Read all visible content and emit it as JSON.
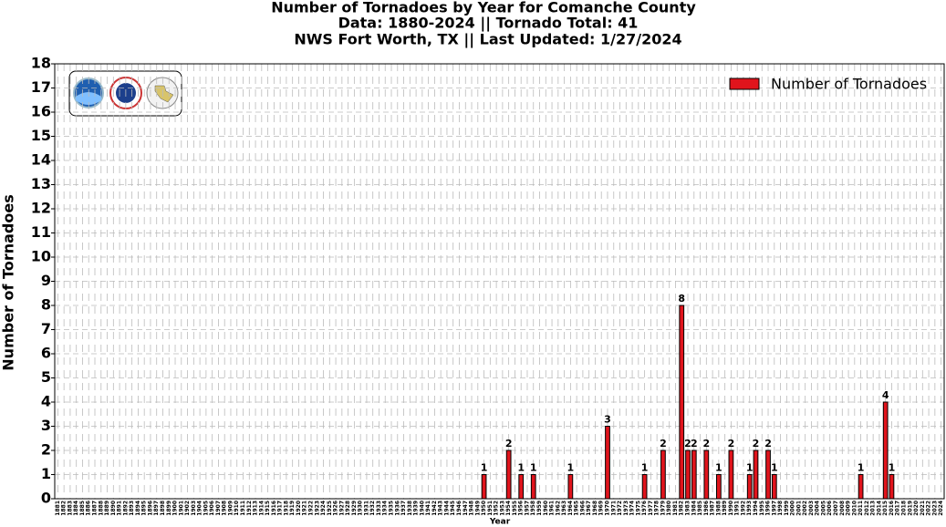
{
  "chart_data": {
    "type": "bar",
    "title": "Number of Tornadoes by Year for Comanche County",
    "subtitle": [
      "Data: 1880-2024 || Tornado Total: 41",
      "NWS Fort Worth, TX || Last Updated: 1/27/2024"
    ],
    "xlabel": "Year",
    "ylabel": "Number of Tornadoes",
    "categories": [
      "1881",
      "1882",
      "1883",
      "1884",
      "1885",
      "1886",
      "1887",
      "1888",
      "1889",
      "1890",
      "1891",
      "1892",
      "1893",
      "1894",
      "1895",
      "1896",
      "1897",
      "1898",
      "1899",
      "1900",
      "1901",
      "1902",
      "1903",
      "1904",
      "1905",
      "1906",
      "1907",
      "1908",
      "1909",
      "1910",
      "1911",
      "1912",
      "1913",
      "1914",
      "1915",
      "1916",
      "1917",
      "1918",
      "1919",
      "1920",
      "1921",
      "1922",
      "1923",
      "1924",
      "1925",
      "1926",
      "1927",
      "1928",
      "1929",
      "1930",
      "1931",
      "1932",
      "1933",
      "1934",
      "1935",
      "1936",
      "1937",
      "1938",
      "1939",
      "1940",
      "1941",
      "1942",
      "1943",
      "1944",
      "1945",
      "1946",
      "1947",
      "1948",
      "1949",
      "1950",
      "1951",
      "1952",
      "1953",
      "1954",
      "1955",
      "1956",
      "1957",
      "1958",
      "1959",
      "1960",
      "1961",
      "1962",
      "1963",
      "1964",
      "1965",
      "1966",
      "1967",
      "1968",
      "1969",
      "1970",
      "1971",
      "1972",
      "1973",
      "1974",
      "1975",
      "1976",
      "1977",
      "1978",
      "1979",
      "1980",
      "1981",
      "1982",
      "1983",
      "1984",
      "1985",
      "1986",
      "1987",
      "1988",
      "1989",
      "1990",
      "1991",
      "1992",
      "1993",
      "1994",
      "1995",
      "1996",
      "1997",
      "1998",
      "1999",
      "2000",
      "2001",
      "2002",
      "2003",
      "2004",
      "2005",
      "2006",
      "2007",
      "2008",
      "2009",
      "2010",
      "2011",
      "2012",
      "2013",
      "2014",
      "2015",
      "2016",
      "2017",
      "2018",
      "2019",
      "2020",
      "2021",
      "2022",
      "2023",
      "2024"
    ],
    "series": [
      {
        "name": "Number of Tornadoes",
        "color": "#e0141c",
        "values": [
          0,
          0,
          0,
          0,
          0,
          0,
          0,
          0,
          0,
          0,
          0,
          0,
          0,
          0,
          0,
          0,
          0,
          0,
          0,
          0,
          0,
          0,
          0,
          0,
          0,
          0,
          0,
          0,
          0,
          0,
          0,
          0,
          0,
          0,
          0,
          0,
          0,
          0,
          0,
          0,
          0,
          0,
          0,
          0,
          0,
          0,
          0,
          0,
          0,
          0,
          0,
          0,
          0,
          0,
          0,
          0,
          0,
          0,
          0,
          0,
          0,
          0,
          0,
          0,
          0,
          0,
          0,
          0,
          0,
          1,
          0,
          0,
          0,
          2,
          0,
          1,
          0,
          1,
          0,
          0,
          0,
          0,
          0,
          1,
          0,
          0,
          0,
          0,
          0,
          3,
          0,
          0,
          0,
          0,
          0,
          1,
          0,
          0,
          2,
          0,
          0,
          8,
          2,
          2,
          0,
          2,
          0,
          1,
          0,
          2,
          0,
          0,
          1,
          2,
          0,
          2,
          1,
          0,
          0,
          0,
          0,
          0,
          0,
          0,
          0,
          0,
          0,
          0,
          0,
          0,
          1,
          0,
          0,
          0,
          4,
          1,
          0,
          0,
          0,
          0,
          0,
          0,
          0,
          0
        ]
      }
    ],
    "ylim": [
      0,
      18
    ],
    "yticks": [
      0,
      1,
      2,
      3,
      4,
      5,
      6,
      7,
      8,
      9,
      10,
      11,
      12,
      13,
      14,
      15,
      16,
      17,
      18
    ],
    "grid": true,
    "legend": "upper right"
  }
}
